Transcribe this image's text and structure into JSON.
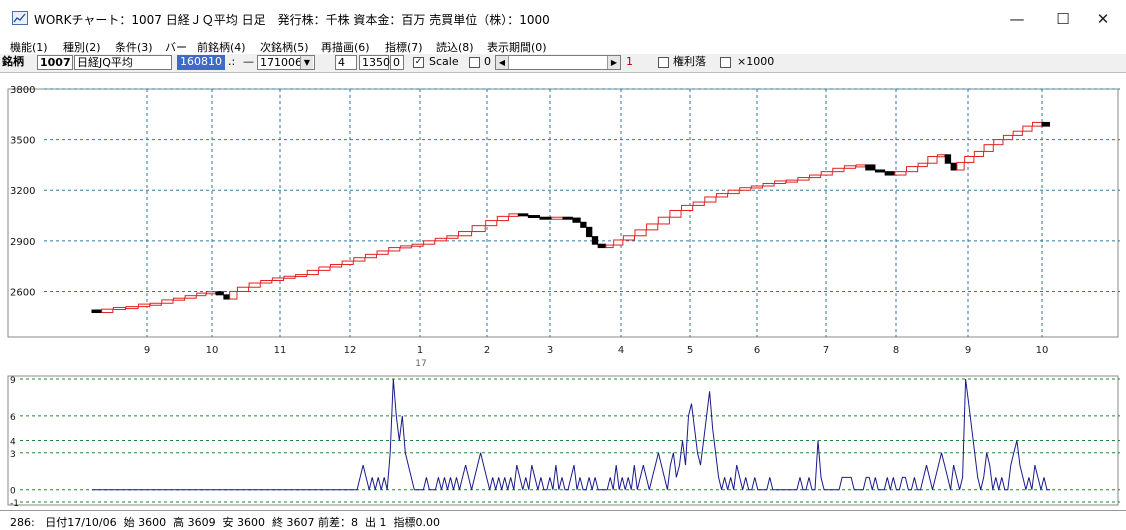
{
  "window": {
    "title": "WORKチャート：1007 日経ＪＱ平均 日足　発行株：千株 資本金：百万 売買単位（株）：1000",
    "minimize_glyph": "—",
    "maximize_glyph": "☐",
    "close_glyph": "✕"
  },
  "menu": [
    {
      "label": "機能(1)"
    },
    {
      "label": "種別(2)"
    },
    {
      "label": "条件(3)"
    },
    {
      "label": "バー"
    },
    {
      "label": "前銘柄(4)"
    },
    {
      "label": "次銘柄(5)"
    },
    {
      "label": "再描画(6)"
    },
    {
      "label": "指標(7)"
    },
    {
      "label": "読込(8)"
    },
    {
      "label": "表示期間(0)"
    }
  ],
  "toolbar": {
    "stock_label": "銘柄",
    "code": "1007",
    "name": "日経JQ平均",
    "start_date": "160810",
    "dots": ".:",
    "dash": "—",
    "end_date": "171006",
    "period": "4",
    "width_value": "1350",
    "zero_value": "0",
    "scale_label": "Scale",
    "scale_checked": true,
    "mid_check_value": "0",
    "scroll_value": "1",
    "rights_label": "権利落",
    "x1000_label": "×1000"
  },
  "chart_data": {
    "type": "line",
    "price_axis": {
      "ticks": [
        {
          "value": 3800,
          "label": "3800"
        },
        {
          "value": 3500,
          "label": "3500"
        },
        {
          "value": 3200,
          "label": "3200"
        },
        {
          "value": 2900,
          "label": "2900"
        },
        {
          "value": 2600,
          "label": "2600"
        }
      ],
      "ylim": [
        2330,
        3800
      ]
    },
    "month_labels": [
      "9",
      "10",
      "11",
      "12",
      "1",
      "2",
      "3",
      "4",
      "5",
      "6",
      "7",
      "8",
      "9",
      "10"
    ],
    "year_label": "17",
    "price_series": {
      "name": "",
      "points": [
        [
          0,
          2490
        ],
        [
          10,
          2475
        ],
        [
          22,
          2495
        ],
        [
          35,
          2505
        ],
        [
          48,
          2510
        ],
        [
          60,
          2525
        ],
        [
          72,
          2530
        ],
        [
          84,
          2550
        ],
        [
          96,
          2560
        ],
        [
          108,
          2575
        ],
        [
          118,
          2590
        ],
        [
          128,
          2598
        ],
        [
          136,
          2580
        ],
        [
          142,
          2555
        ],
        [
          150,
          2600
        ],
        [
          162,
          2625
        ],
        [
          174,
          2650
        ],
        [
          186,
          2665
        ],
        [
          198,
          2680
        ],
        [
          210,
          2690
        ],
        [
          222,
          2700
        ],
        [
          234,
          2725
        ],
        [
          246,
          2745
        ],
        [
          258,
          2760
        ],
        [
          270,
          2780
        ],
        [
          282,
          2800
        ],
        [
          294,
          2820
        ],
        [
          306,
          2840
        ],
        [
          318,
          2860
        ],
        [
          330,
          2870
        ],
        [
          342,
          2880
        ],
        [
          354,
          2900
        ],
        [
          366,
          2915
        ],
        [
          378,
          2930
        ],
        [
          392,
          2955
        ],
        [
          406,
          2990
        ],
        [
          418,
          3020
        ],
        [
          430,
          3045
        ],
        [
          440,
          3060
        ],
        [
          450,
          3050
        ],
        [
          462,
          3040
        ],
        [
          474,
          3030
        ],
        [
          486,
          3040
        ],
        [
          496,
          3035
        ],
        [
          504,
          3010
        ],
        [
          510,
          2980
        ],
        [
          516,
          2925
        ],
        [
          522,
          2880
        ],
        [
          530,
          2860
        ],
        [
          538,
          2875
        ],
        [
          548,
          2905
        ],
        [
          560,
          2930
        ],
        [
          572,
          2965
        ],
        [
          584,
          3000
        ],
        [
          596,
          3040
        ],
        [
          608,
          3080
        ],
        [
          620,
          3110
        ],
        [
          632,
          3130
        ],
        [
          644,
          3160
        ],
        [
          656,
          3180
        ],
        [
          668,
          3200
        ],
        [
          680,
          3215
        ],
        [
          692,
          3225
        ],
        [
          704,
          3240
        ],
        [
          716,
          3255
        ],
        [
          728,
          3260
        ],
        [
          740,
          3275
        ],
        [
          752,
          3290
        ],
        [
          764,
          3310
        ],
        [
          776,
          3330
        ],
        [
          788,
          3345
        ],
        [
          798,
          3350
        ],
        [
          808,
          3320
        ],
        [
          818,
          3310
        ],
        [
          828,
          3290
        ],
        [
          840,
          3310
        ],
        [
          852,
          3340
        ],
        [
          862,
          3360
        ],
        [
          872,
          3400
        ],
        [
          880,
          3410
        ],
        [
          886,
          3360
        ],
        [
          892,
          3320
        ],
        [
          900,
          3365
        ],
        [
          910,
          3400
        ],
        [
          920,
          3430
        ],
        [
          930,
          3470
        ],
        [
          940,
          3500
        ],
        [
          950,
          3525
        ],
        [
          960,
          3550
        ],
        [
          970,
          3580
        ],
        [
          980,
          3602
        ],
        [
          988,
          3580
        ]
      ],
      "up_color": "#e02020",
      "down_color": "#000000"
    },
    "indicator": {
      "axis_ticks": [
        {
          "value": 9,
          "label": "9"
        },
        {
          "value": 6,
          "label": "6"
        },
        {
          "value": 4,
          "label": "4"
        },
        {
          "value": 3,
          "label": "3"
        },
        {
          "value": 0,
          "label": "0"
        },
        {
          "value": -1,
          "label": "-1"
        }
      ],
      "ylim": [
        -1,
        9
      ],
      "color": "#1a1a8c",
      "values": [
        0,
        0,
        0,
        0,
        0,
        0,
        0,
        0,
        0,
        0,
        0,
        0,
        0,
        0,
        0,
        0,
        0,
        0,
        0,
        0,
        0,
        0,
        0,
        0,
        0,
        0,
        0,
        0,
        0,
        0,
        0,
        0,
        0,
        0,
        0,
        0,
        0,
        0,
        0,
        0,
        0,
        0,
        0,
        0,
        0,
        0,
        0,
        0,
        0,
        0,
        0,
        0,
        0,
        0,
        0,
        0,
        0,
        0,
        0,
        0,
        0,
        0,
        0,
        0,
        0,
        0,
        0,
        0,
        0,
        0,
        0,
        0,
        0,
        0,
        0,
        0,
        0,
        0,
        0,
        0,
        0,
        0,
        0,
        0,
        0,
        0,
        0,
        0,
        0,
        1,
        2,
        1,
        0,
        1,
        0,
        1,
        0,
        1,
        0,
        3,
        9,
        6,
        4,
        6,
        3,
        2,
        1,
        0,
        0,
        0,
        0,
        1,
        0,
        0,
        0,
        1,
        0,
        1,
        0,
        1,
        0,
        1,
        0,
        1,
        2,
        1,
        0,
        1,
        2,
        3,
        2,
        1,
        0,
        1,
        0,
        1,
        0,
        1,
        0,
        1,
        0,
        2,
        1,
        0,
        1,
        0,
        2,
        1,
        0,
        1,
        0,
        0,
        1,
        0,
        2,
        0,
        1,
        0,
        0,
        1,
        2,
        0,
        1,
        0,
        0,
        1,
        0,
        1,
        0,
        0,
        0,
        0,
        1,
        0,
        2,
        0,
        1,
        0,
        1,
        0,
        2,
        0,
        1,
        2,
        1,
        0,
        1,
        2,
        3,
        2,
        1,
        0,
        2,
        3,
        1,
        2,
        4,
        2,
        6,
        7,
        5,
        3,
        2,
        4,
        6,
        8,
        5,
        3,
        1,
        0,
        1,
        0,
        1,
        0,
        2,
        1,
        0,
        1,
        0,
        0,
        1,
        0,
        0,
        0,
        0,
        1,
        0,
        0,
        0,
        0,
        0,
        0,
        0,
        0,
        0,
        1,
        0,
        0,
        1,
        0,
        0,
        4,
        1,
        0,
        0,
        0,
        0,
        0,
        0,
        1,
        1,
        1,
        1,
        0,
        0,
        0,
        0,
        1,
        1,
        0,
        1,
        0,
        0,
        0,
        1,
        0,
        1,
        0,
        0,
        1,
        1,
        0,
        0,
        1,
        0,
        0,
        1,
        2,
        1,
        0,
        1,
        2,
        3,
        2,
        1,
        0,
        2,
        1,
        0,
        1,
        9,
        7,
        5,
        3,
        1,
        0,
        1,
        3,
        2,
        0,
        1,
        0,
        1,
        0,
        0,
        2,
        3,
        4,
        2,
        1,
        0,
        1,
        0,
        2,
        1,
        0,
        1,
        0,
        0
      ]
    }
  },
  "status": {
    "text": "286:   日付17/10/06  始 3600  高 3609  安 3600  終 3607 前差：8  出 1  指標0.00"
  }
}
